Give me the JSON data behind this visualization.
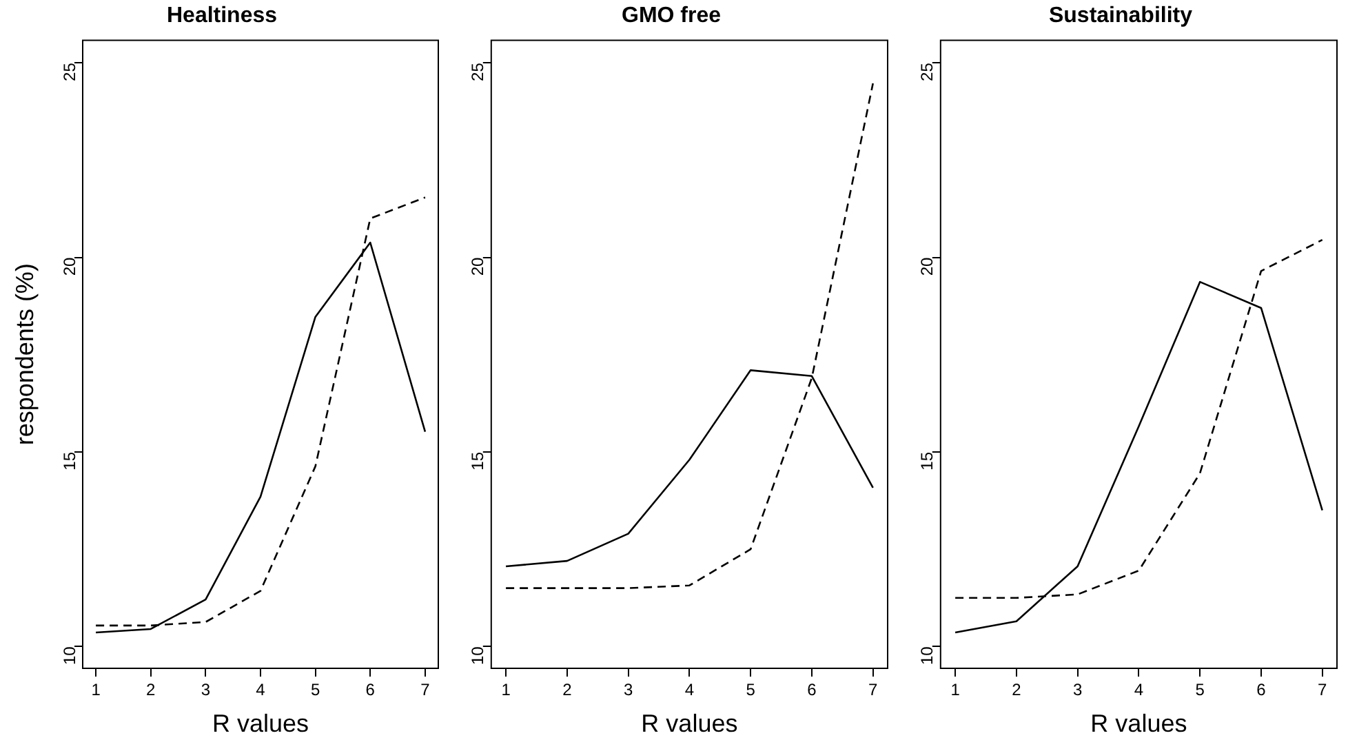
{
  "chart_data": [
    {
      "type": "line",
      "title": "Healtiness",
      "xlabel": "R values",
      "ylabel": "respondents (%)",
      "x": [
        1,
        2,
        3,
        4,
        5,
        6,
        7
      ],
      "xlim": [
        0.76,
        7.24
      ],
      "xticks": [
        1,
        2,
        3,
        4,
        5,
        6,
        7
      ],
      "ylim": [
        9.44,
        25.58
      ],
      "yticks": [
        10,
        15,
        20,
        25
      ],
      "grid": false,
      "legend": false,
      "marker": "none",
      "series": [
        {
          "color": "#000000",
          "line_style": "solid",
          "values": [
            10.36,
            10.45,
            11.21,
            13.85,
            18.47,
            20.38,
            15.52
          ]
        },
        {
          "color": "#000000",
          "line_style": "dashed",
          "values": [
            10.54,
            10.54,
            10.63,
            11.43,
            14.63,
            21.0,
            21.54
          ]
        }
      ]
    },
    {
      "type": "line",
      "title": "GMO free",
      "xlabel": "R values",
      "x": [
        1,
        2,
        3,
        4,
        5,
        6,
        7
      ],
      "xlim": [
        0.76,
        7.24
      ],
      "xticks": [
        1,
        2,
        3,
        4,
        5,
        6,
        7
      ],
      "ylim": [
        9.44,
        25.58
      ],
      "yticks": [
        10,
        15,
        20,
        25
      ],
      "grid": false,
      "legend": false,
      "marker": "none",
      "series": [
        {
          "color": "#000000",
          "line_style": "solid",
          "values": [
            12.06,
            12.2,
            12.9,
            14.8,
            17.1,
            16.95,
            14.08
          ]
        },
        {
          "color": "#000000",
          "line_style": "dashed",
          "values": [
            11.5,
            11.5,
            11.5,
            11.57,
            12.5,
            16.9,
            24.47
          ]
        }
      ]
    },
    {
      "type": "line",
      "title": "Sustainability",
      "xlabel": "R values",
      "x": [
        1,
        2,
        3,
        4,
        5,
        6,
        7
      ],
      "xlim": [
        0.76,
        7.24
      ],
      "xticks": [
        1,
        2,
        3,
        4,
        5,
        6,
        7
      ],
      "ylim": [
        9.44,
        25.58
      ],
      "yticks": [
        10,
        15,
        20,
        25
      ],
      "grid": false,
      "legend": false,
      "marker": "none",
      "series": [
        {
          "color": "#000000",
          "line_style": "solid",
          "values": [
            10.36,
            10.65,
            12.06,
            15.66,
            19.37,
            18.7,
            13.5
          ]
        },
        {
          "color": "#000000",
          "line_style": "dashed",
          "values": [
            11.25,
            11.25,
            11.34,
            11.95,
            14.45,
            19.65,
            20.45
          ]
        }
      ]
    }
  ]
}
